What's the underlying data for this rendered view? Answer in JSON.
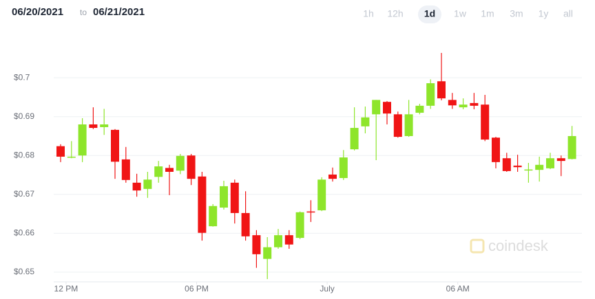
{
  "chart_data": {
    "type": "candlestick",
    "date_from": "06/20/2021",
    "range_word": "to",
    "date_to": "06/21/2021",
    "timeframes": [
      {
        "label": "1h",
        "active": false
      },
      {
        "label": "12h",
        "active": false
      },
      {
        "label": "1d",
        "active": true
      },
      {
        "label": "1w",
        "active": false
      },
      {
        "label": "1m",
        "active": false
      },
      {
        "label": "3m",
        "active": false
      },
      {
        "label": "1y",
        "active": false
      },
      {
        "label": "all",
        "active": false
      }
    ],
    "watermark": "coindesk",
    "categories": [
      null,
      null,
      null,
      null,
      null,
      null,
      null,
      null,
      null,
      null,
      null,
      null,
      null,
      null,
      null,
      null,
      null,
      null,
      null,
      null,
      null,
      null,
      null,
      null,
      null,
      null,
      null,
      null,
      null,
      null,
      null,
      null,
      null,
      null,
      null,
      null,
      null,
      null,
      null,
      null,
      null,
      null,
      null,
      null,
      null,
      null,
      null,
      null
    ],
    "open": [
      0.6824,
      0.6795,
      0.68,
      0.688,
      0.6873,
      0.6866,
      0.679,
      0.673,
      0.6714,
      0.6745,
      0.6768,
      0.6761,
      0.68,
      0.6746,
      0.6618,
      0.6666,
      0.673,
      0.6652,
      0.6595,
      0.6534,
      0.6564,
      0.6595,
      0.6588,
      0.6656,
      0.6659,
      0.6751,
      0.6742,
      0.6816,
      0.6875,
      0.6906,
      0.6938,
      0.6906,
      0.685,
      0.691,
      0.6928,
      0.6991,
      0.6943,
      0.6924,
      0.6935,
      0.6931,
      0.6846,
      0.6793,
      0.6774,
      0.6762,
      0.6763,
      0.6767,
      0.6793,
      0.6791
    ],
    "high": [
      0.6829,
      0.6837,
      0.6896,
      0.6924,
      0.692,
      0.6868,
      0.6822,
      0.6753,
      0.6758,
      0.6786,
      0.6776,
      0.6804,
      0.6804,
      0.6758,
      0.6675,
      0.6735,
      0.6738,
      0.6708,
      0.6608,
      0.659,
      0.6611,
      0.6608,
      0.6656,
      0.6685,
      0.6744,
      0.6769,
      0.6814,
      0.6924,
      0.6926,
      0.6943,
      0.694,
      0.6913,
      0.6943,
      0.6933,
      0.6996,
      0.7064,
      0.6961,
      0.6947,
      0.6961,
      0.6956,
      0.6848,
      0.6807,
      0.6802,
      0.6781,
      0.6797,
      0.6807,
      0.68,
      0.6876
    ],
    "low": [
      0.6783,
      0.6793,
      0.6783,
      0.6868,
      0.6853,
      0.674,
      0.673,
      0.6694,
      0.6691,
      0.673,
      0.6698,
      0.6752,
      0.6724,
      0.6581,
      0.6617,
      0.6661,
      0.6625,
      0.6581,
      0.6511,
      0.6482,
      0.656,
      0.656,
      0.6585,
      0.6629,
      0.6657,
      0.6733,
      0.6737,
      0.6813,
      0.6857,
      0.6788,
      0.688,
      0.6846,
      0.6848,
      0.6906,
      0.692,
      0.6942,
      0.692,
      0.6919,
      0.6919,
      0.6837,
      0.6767,
      0.6758,
      0.6758,
      0.673,
      0.6733,
      0.6765,
      0.6747,
      0.679
    ],
    "close": [
      0.6797,
      0.6797,
      0.688,
      0.6871,
      0.688,
      0.6784,
      0.6737,
      0.671,
      0.6738,
      0.6772,
      0.6758,
      0.6799,
      0.674,
      0.6601,
      0.667,
      0.6721,
      0.6652,
      0.6592,
      0.6546,
      0.6564,
      0.6595,
      0.6571,
      0.6654,
      0.6654,
      0.6738,
      0.674,
      0.6795,
      0.6871,
      0.6898,
      0.6943,
      0.6908,
      0.6848,
      0.6906,
      0.6928,
      0.6986,
      0.6947,
      0.6929,
      0.6931,
      0.6928,
      0.6841,
      0.6783,
      0.676,
      0.677,
      0.6764,
      0.6776,
      0.6793,
      0.6786,
      0.685
    ],
    "up_color": "#8ee52b",
    "down_color": "#f01515",
    "ylim": [
      0.6475,
      0.7094
    ],
    "yticks": [
      {
        "value": 0.65,
        "label": "$0.65"
      },
      {
        "value": 0.66,
        "label": "$0.66"
      },
      {
        "value": 0.67,
        "label": "$0.67"
      },
      {
        "value": 0.68,
        "label": "$0.68"
      },
      {
        "value": 0.69,
        "label": "$0.69"
      },
      {
        "value": 0.7,
        "label": "$0.7"
      }
    ],
    "xticks": [
      {
        "value": 0.5,
        "label": "12 PM"
      },
      {
        "value": 12.5,
        "label": "06 PM"
      },
      {
        "value": 24.5,
        "label": "July"
      },
      {
        "value": 36.5,
        "label": "06 AM"
      }
    ],
    "grid": true
  }
}
